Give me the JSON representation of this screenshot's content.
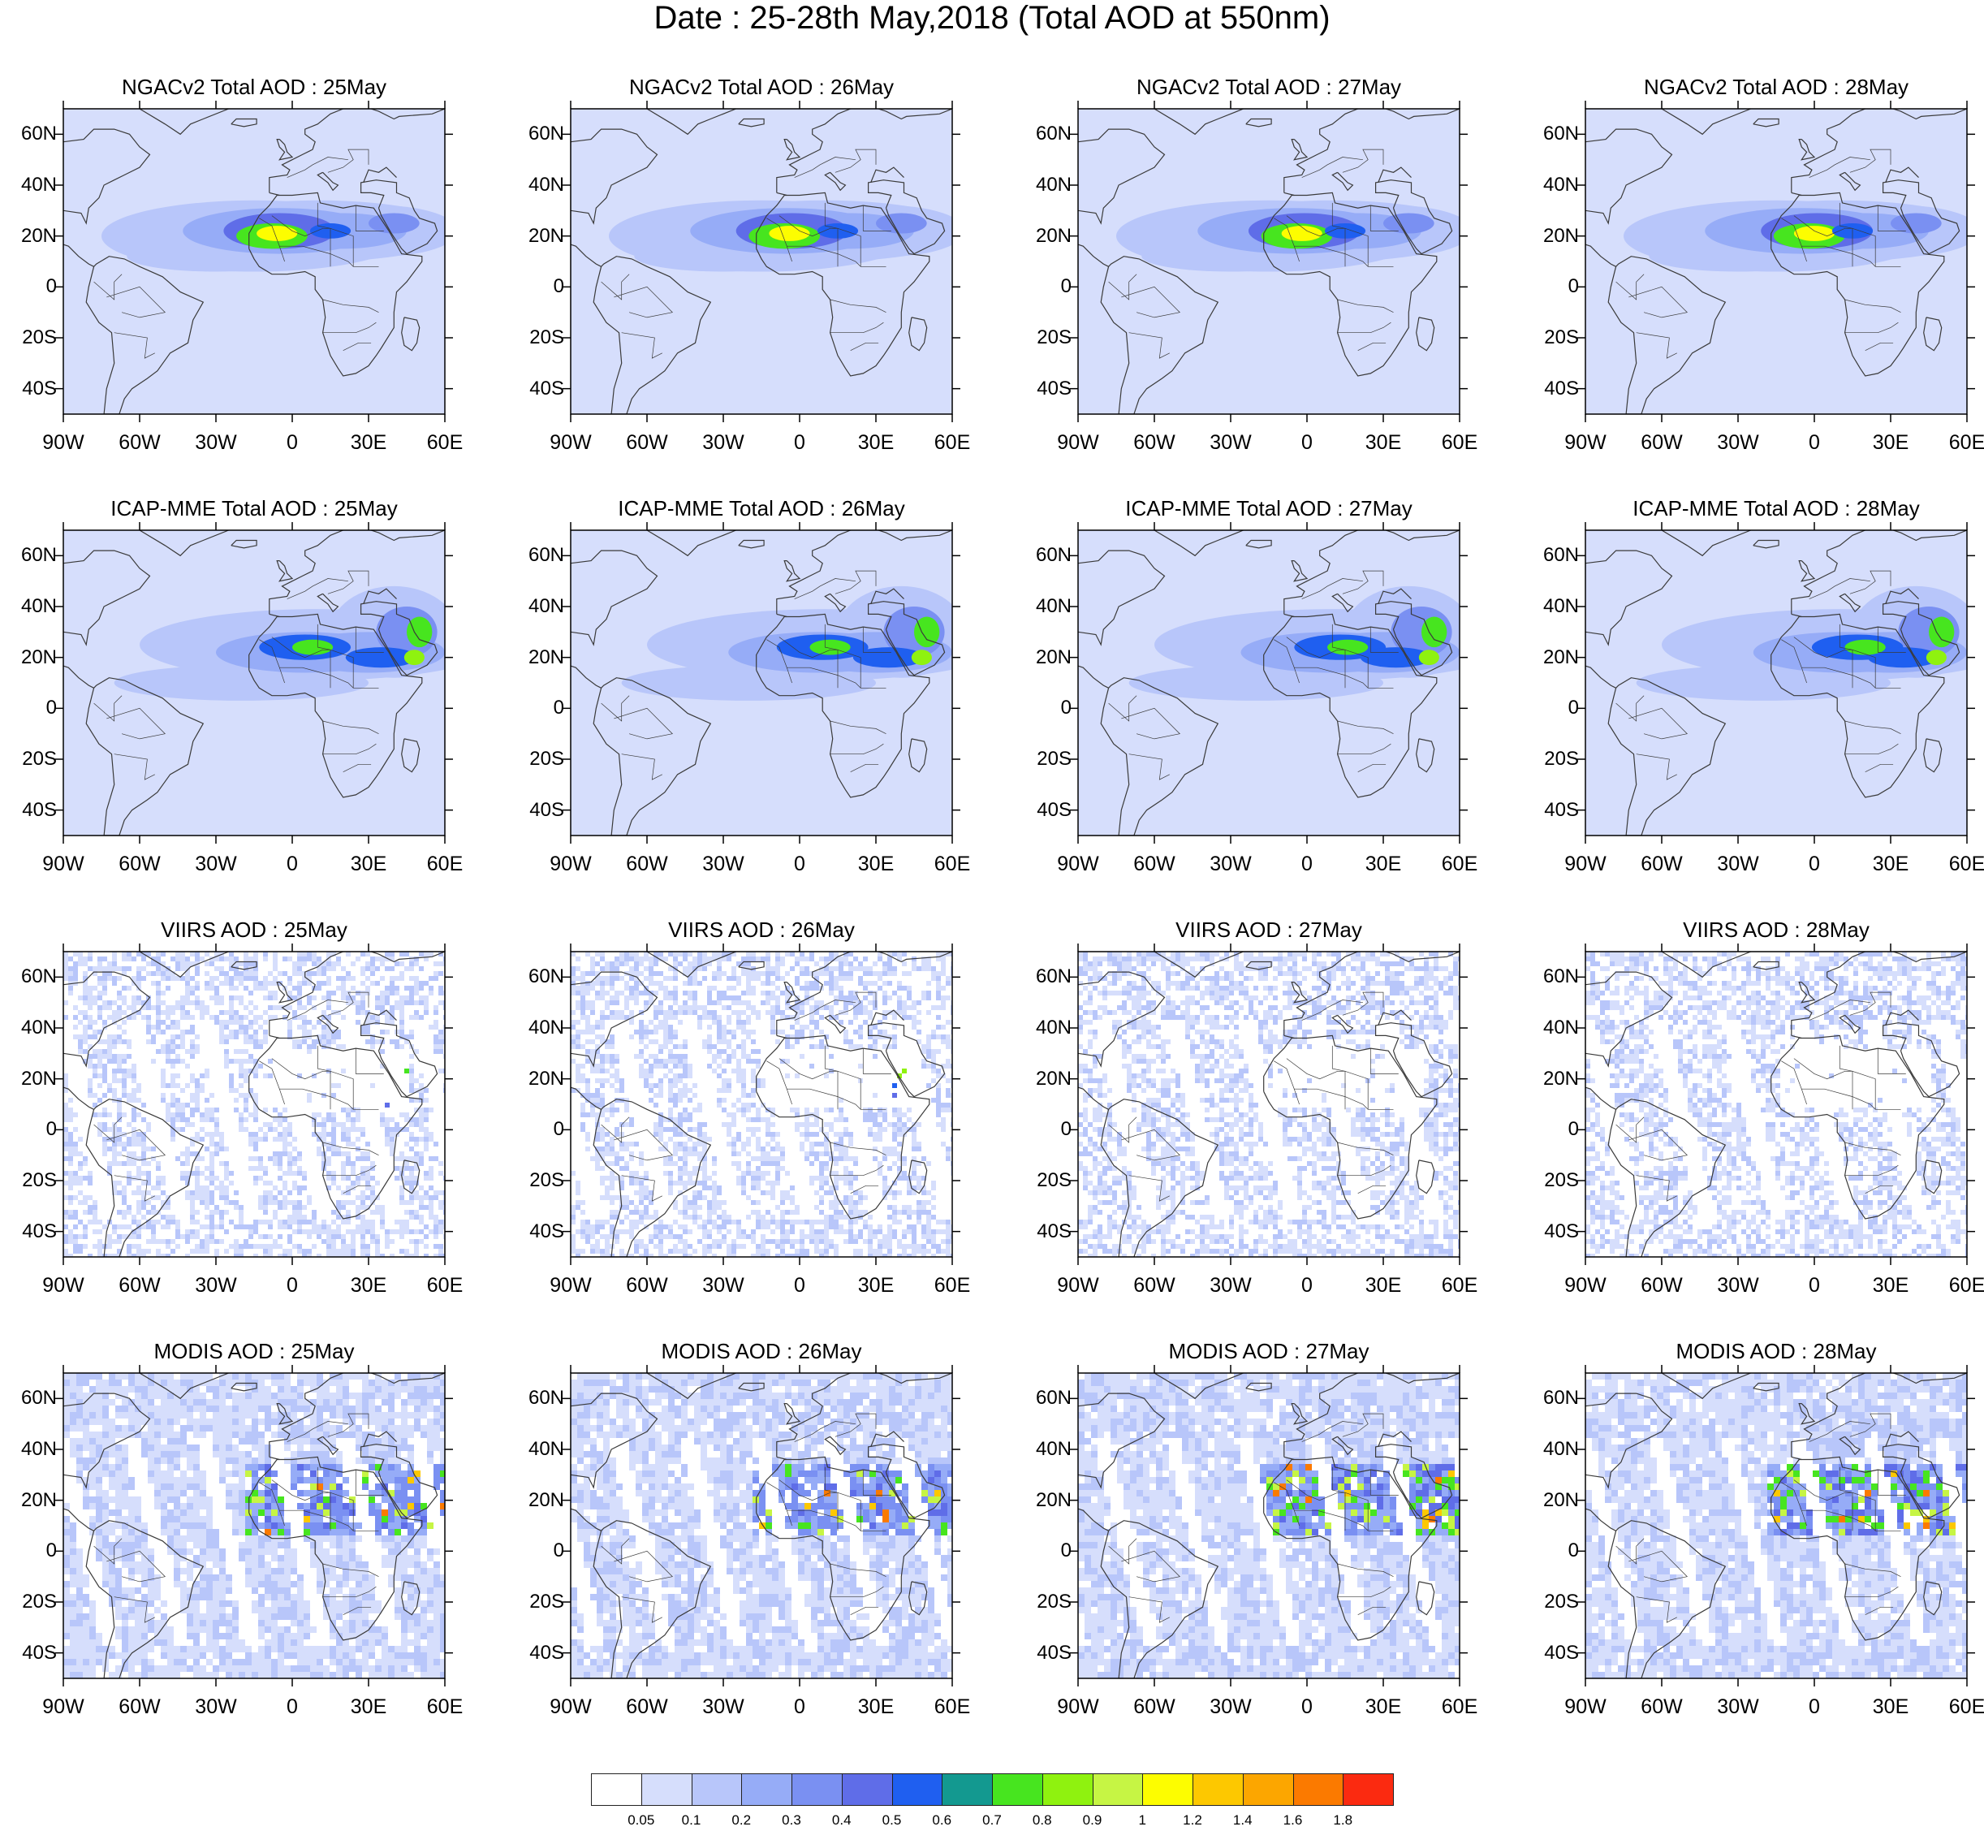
{
  "figure": {
    "title": "Date : 25-28th May,2018 (Total AOD at 550nm)"
  },
  "axes": {
    "lat_labels": [
      "60N",
      "40N",
      "20N",
      "0",
      "20S",
      "40S"
    ],
    "lon_labels": [
      "90W",
      "60W",
      "30W",
      "0",
      "30E",
      "60E"
    ],
    "lat_range": [
      -50,
      70
    ],
    "lon_range": [
      -90,
      60
    ]
  },
  "panels": [
    {
      "title": "NGACv2 Total AOD : 25May",
      "product": "NGACv2",
      "day": "25May"
    },
    {
      "title": "NGACv2 Total AOD : 26May",
      "product": "NGACv2",
      "day": "26May"
    },
    {
      "title": "NGACv2 Total AOD : 27May",
      "product": "NGACv2",
      "day": "27May"
    },
    {
      "title": "NGACv2 Total AOD : 28May",
      "product": "NGACv2",
      "day": "28May"
    },
    {
      "title": "ICAP-MME Total AOD : 25May",
      "product": "ICAP-MME",
      "day": "25May"
    },
    {
      "title": "ICAP-MME Total AOD : 26May",
      "product": "ICAP-MME",
      "day": "26May"
    },
    {
      "title": "ICAP-MME Total AOD : 27May",
      "product": "ICAP-MME",
      "day": "27May"
    },
    {
      "title": "ICAP-MME Total AOD : 28May",
      "product": "ICAP-MME",
      "day": "28May"
    },
    {
      "title": "VIIRS AOD : 25May",
      "product": "VIIRS",
      "day": "25May"
    },
    {
      "title": "VIIRS AOD : 26May",
      "product": "VIIRS",
      "day": "26May"
    },
    {
      "title": "VIIRS AOD : 27May",
      "product": "VIIRS",
      "day": "27May"
    },
    {
      "title": "VIIRS AOD : 28May",
      "product": "VIIRS",
      "day": "28May"
    },
    {
      "title": "MODIS AOD : 25May",
      "product": "MODIS",
      "day": "25May"
    },
    {
      "title": "MODIS AOD : 26May",
      "product": "MODIS",
      "day": "26May"
    },
    {
      "title": "MODIS AOD : 27May",
      "product": "MODIS",
      "day": "27May"
    },
    {
      "title": "MODIS AOD : 28May",
      "product": "MODIS",
      "day": "28May"
    }
  ],
  "colorbar": {
    "levels": [
      "0.05",
      "0.1",
      "0.2",
      "0.3",
      "0.4",
      "0.5",
      "0.6",
      "0.7",
      "0.8",
      "0.9",
      "1",
      "1.2",
      "1.4",
      "1.6",
      "1.8"
    ],
    "colors": [
      "#ffffff",
      "#d6defc",
      "#b8c6fa",
      "#96acf7",
      "#7a90f2",
      "#5f6de8",
      "#1f5ff0",
      "#139990",
      "#47e51f",
      "#8ff20f",
      "#c6f544",
      "#fdfd00",
      "#fdc800",
      "#fca600",
      "#fb7a00",
      "#fb2a10"
    ]
  },
  "map_colors": {
    "land_outline": "#3a3a3a",
    "dust_core": "#e5e52a"
  }
}
